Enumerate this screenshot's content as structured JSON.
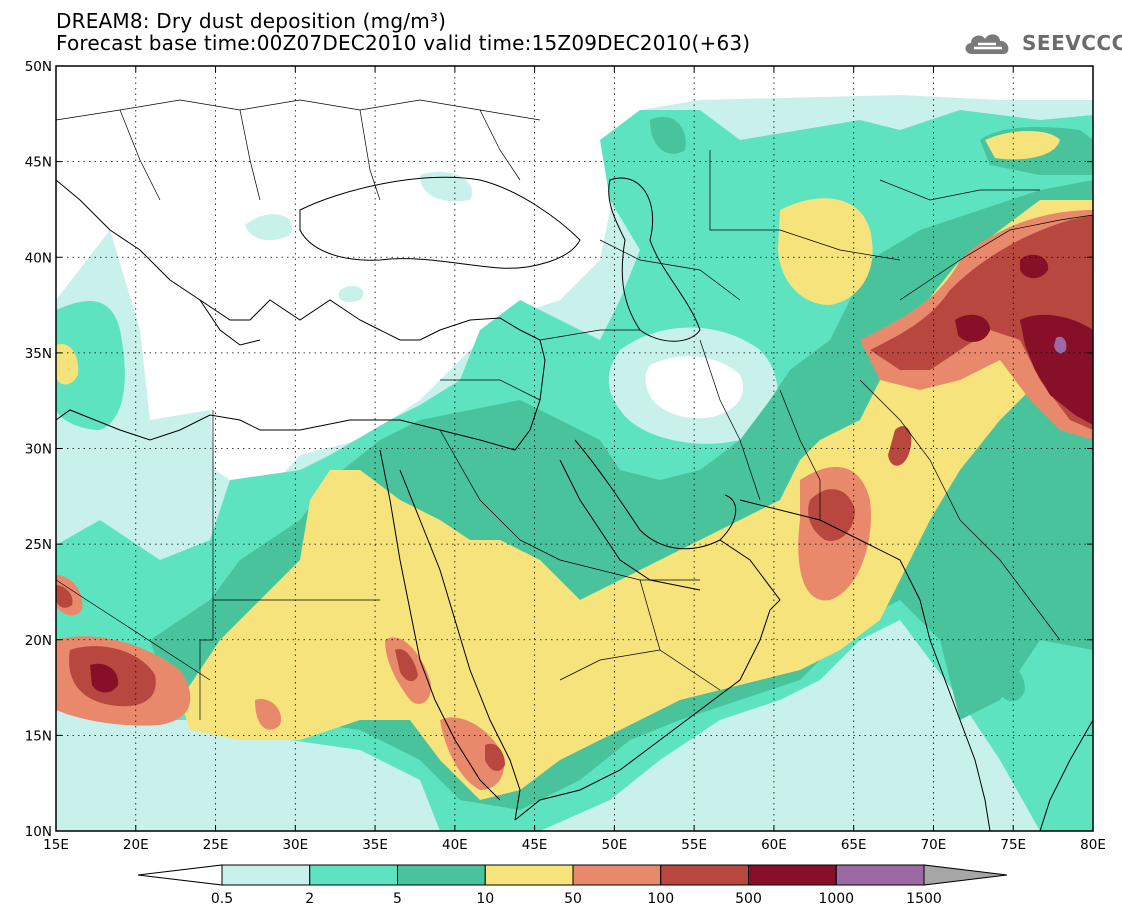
{
  "title": {
    "line1": "DREAM8: Dry dust deposition (mg/m³)",
    "line2": "Forecast base time:00Z07DEC2010 valid time:15Z09DEC2010(+63)"
  },
  "logo": {
    "text": "SEEVCCC",
    "icon": "cloud-icon"
  },
  "map": {
    "lon_range": [
      15,
      80
    ],
    "lat_range": [
      10,
      50
    ],
    "lon_ticks": [
      "15E",
      "20E",
      "25E",
      "30E",
      "35E",
      "40E",
      "45E",
      "50E",
      "55E",
      "60E",
      "65E",
      "70E",
      "75E",
      "80E"
    ],
    "lat_ticks": [
      "10N",
      "15N",
      "20N",
      "25N",
      "30N",
      "35N",
      "40N",
      "45N",
      "50N"
    ],
    "grid": "dotted"
  },
  "colorbar": {
    "labels": [
      "0.5",
      "2",
      "5",
      "10",
      "50",
      "100",
      "500",
      "1000",
      "1500"
    ],
    "colors": [
      "#c7f1ea",
      "#5de3c0",
      "#49c39c",
      "#f7e37c",
      "#e9896b",
      "#b7473f",
      "#870f27",
      "#9b6aa4"
    ],
    "under_color": "#ffffff",
    "over_color": "#a6a6a6"
  },
  "palette": {
    "c1": "#c7f1ea",
    "c2": "#5de3c0",
    "c3": "#49c39c",
    "c4": "#f7e37c",
    "c5": "#e9896b",
    "c6": "#b7473f",
    "c7": "#870f27",
    "c8": "#9b6aa4"
  }
}
